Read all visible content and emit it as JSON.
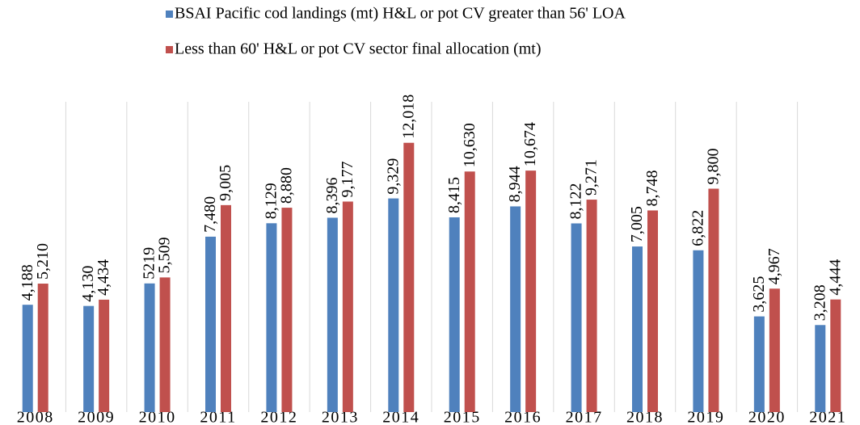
{
  "chart_data": {
    "type": "bar",
    "categories": [
      "2008",
      "2009",
      "2010",
      "2011",
      "2012",
      "2013",
      "2014",
      "2015",
      "2016",
      "2017",
      "2018",
      "2019",
      "2020",
      "2021"
    ],
    "series": [
      {
        "name": "BSAI Pacific cod landings (mt) H&L  or pot CV greater than 56' LOA",
        "color": "#4f81bd",
        "values": [
          4188,
          4130,
          5219,
          7480,
          8129,
          8396,
          9329,
          8415,
          8944,
          8122,
          7005,
          6822,
          3625,
          3208
        ],
        "value_labels": [
          "4,188",
          "4,130",
          "5219",
          "7,480",
          "8,129",
          "8,396",
          "9,329",
          "8,415",
          "8,944",
          "8,122",
          "7,005",
          "6,822",
          "3,625",
          "3,208"
        ]
      },
      {
        "name": "Less than 60' H&L  or pot CV sector final allocation (mt)",
        "color": "#c0504d",
        "values": [
          5210,
          4434,
          5509,
          9005,
          8880,
          9177,
          12018,
          10630,
          10674,
          9271,
          8748,
          9800,
          4967,
          4444
        ],
        "value_labels": [
          "5,210",
          "4,434",
          "5,509",
          "9,005",
          "8,880",
          "9,177",
          "12,018",
          "10,630",
          "10,674",
          "9,271",
          "8,748",
          "9,800",
          "4,967",
          "4,444"
        ]
      }
    ],
    "ylim": [
      -1000,
      14000
    ],
    "legend": "top"
  }
}
